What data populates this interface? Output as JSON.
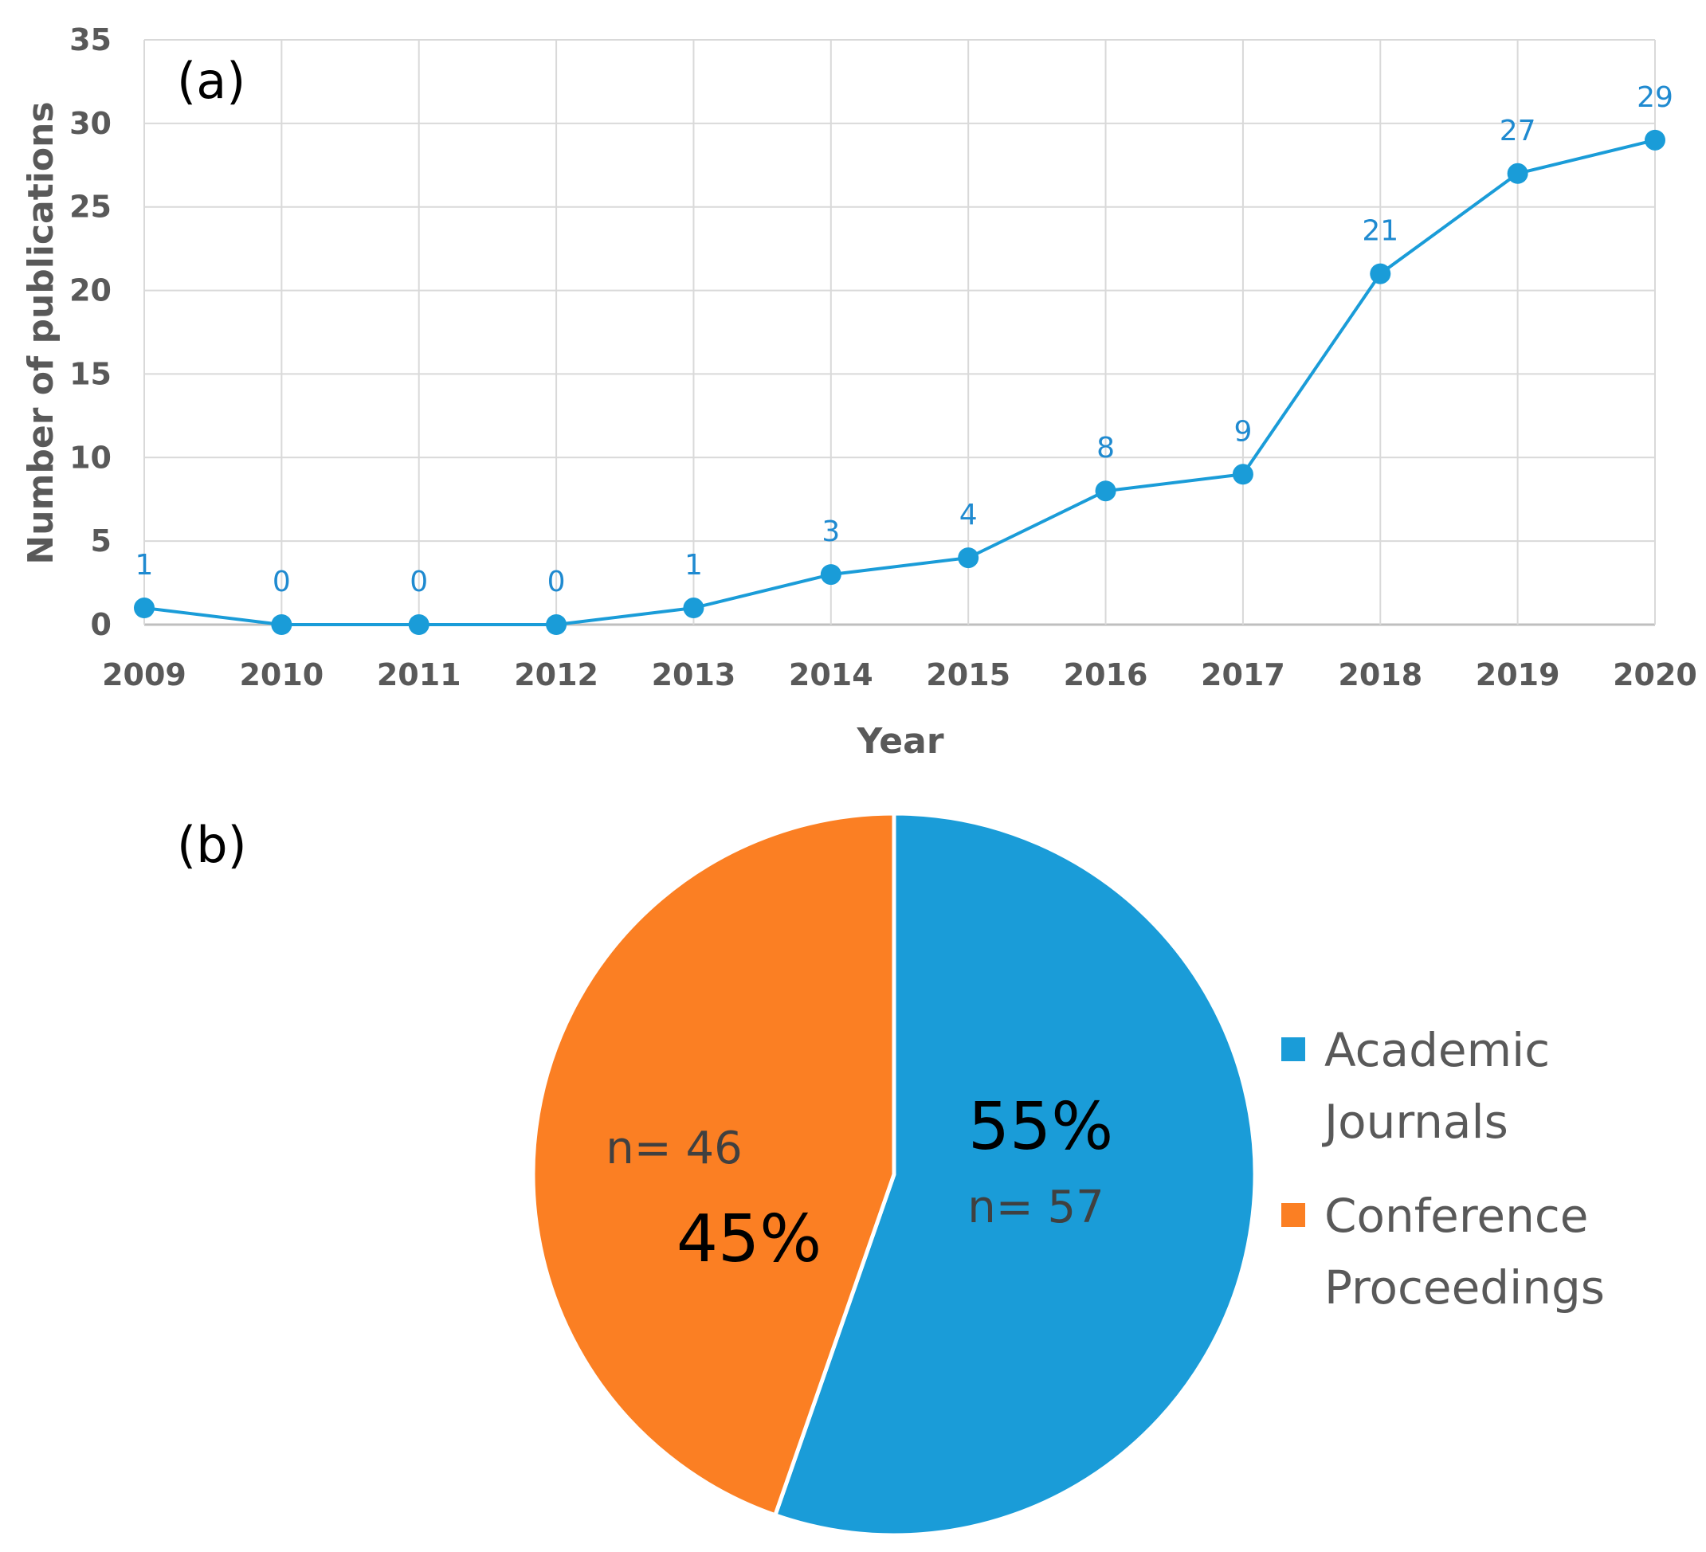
{
  "chart_data": [
    {
      "type": "line",
      "panel_label": "(a)",
      "title": "",
      "xlabel": "Year",
      "ylabel": "Number of publications",
      "ylim": [
        0,
        35
      ],
      "yticks": [
        0,
        5,
        10,
        15,
        20,
        25,
        30,
        35
      ],
      "grid": true,
      "color": "#1a9cd8",
      "categories": [
        "2009",
        "2010",
        "2011",
        "2012",
        "2013",
        "2014",
        "2015",
        "2016",
        "2017",
        "2018",
        "2019",
        "2020"
      ],
      "values": [
        1,
        0,
        0,
        0,
        1,
        3,
        4,
        8,
        9,
        21,
        27,
        29
      ]
    },
    {
      "type": "pie",
      "panel_label": "(b)",
      "legend_position": "right",
      "slices": [
        {
          "name": "Academic Journals",
          "legend_lines": [
            "Academic",
            "Journals"
          ],
          "value": 57,
          "percent_label": "55%",
          "count_label": "n= 57",
          "color": "#1a9cd8"
        },
        {
          "name": "Conference Proceedings",
          "legend_lines": [
            "Conference",
            "Proceedings"
          ],
          "value": 46,
          "percent_label": "45%",
          "count_label": "n= 46",
          "color": "#fb7f23"
        }
      ]
    }
  ]
}
